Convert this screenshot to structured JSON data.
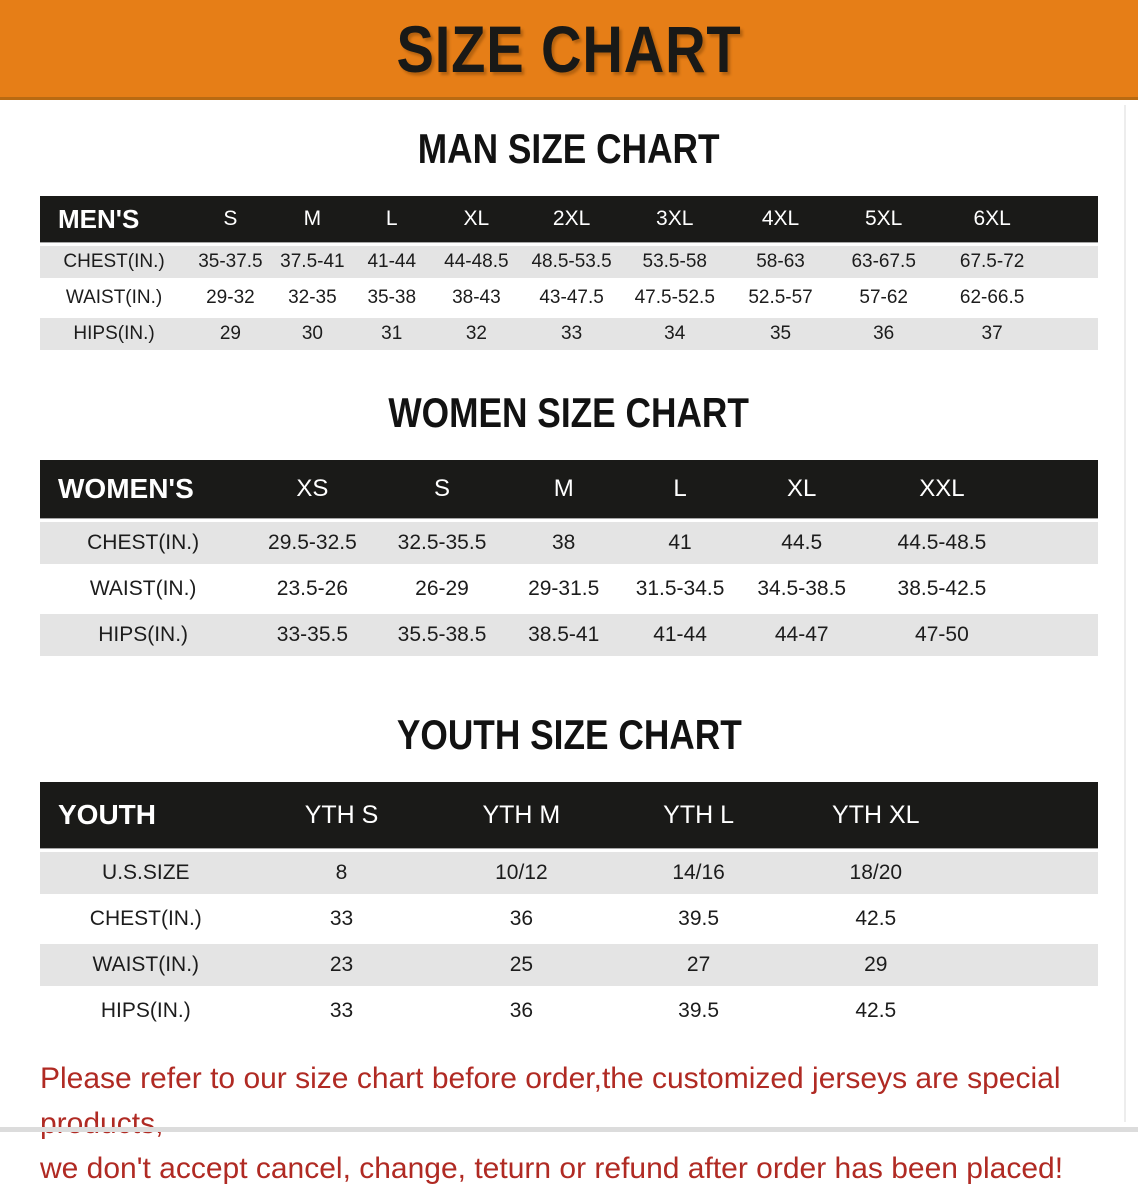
{
  "banner": {
    "title": "SIZE CHART",
    "background": "#E67E17"
  },
  "colors": {
    "header_bar": "#1A1A18",
    "row_shade": "#E4E4E4",
    "disclaimer_text": "#B02A23"
  },
  "sections": [
    {
      "heading": "MAN SIZE CHART",
      "table": {
        "header_label": "MEN'S",
        "columns": [
          "S",
          "M",
          "L",
          "XL",
          "2XL",
          "3XL",
          "4XL",
          "5XL",
          "6XL"
        ],
        "rows": [
          {
            "label": "CHEST(IN.)",
            "values": [
              "35-37.5",
              "37.5-41",
              "41-44",
              "44-48.5",
              "48.5-53.5",
              "53.5-58",
              "58-63",
              "63-67.5",
              "67.5-72"
            ]
          },
          {
            "label": "WAIST(IN.)",
            "values": [
              "29-32",
              "32-35",
              "35-38",
              "38-43",
              "43-47.5",
              "47.5-52.5",
              "52.5-57",
              "57-62",
              "62-66.5"
            ]
          },
          {
            "label": "HIPS(IN.)",
            "values": [
              "29",
              "30",
              "31",
              "32",
              "33",
              "34",
              "35",
              "36",
              "37"
            ]
          }
        ]
      }
    },
    {
      "heading": "WOMEN SIZE CHART",
      "table": {
        "header_label": "WOMEN'S",
        "columns": [
          "XS",
          "S",
          "M",
          "L",
          "XL",
          "XXL"
        ],
        "rows": [
          {
            "label": "CHEST(IN.)",
            "values": [
              "29.5-32.5",
              "32.5-35.5",
              "38",
              "41",
              "44.5",
              "44.5-48.5"
            ]
          },
          {
            "label": "WAIST(IN.)",
            "values": [
              "23.5-26",
              "26-29",
              "29-31.5",
              "31.5-34.5",
              "34.5-38.5",
              "38.5-42.5"
            ]
          },
          {
            "label": "HIPS(IN.)",
            "values": [
              "33-35.5",
              "35.5-38.5",
              "38.5-41",
              "41-44",
              "44-47",
              "47-50"
            ]
          }
        ]
      }
    },
    {
      "heading": "YOUTH SIZE CHART",
      "table": {
        "header_label": "YOUTH",
        "columns": [
          "YTH S",
          "YTH M",
          "YTH L",
          "YTH XL"
        ],
        "rows": [
          {
            "label": "U.S.SIZE",
            "values": [
              "8",
              "10/12",
              "14/16",
              "18/20"
            ]
          },
          {
            "label": "CHEST(IN.)",
            "values": [
              "33",
              "36",
              "39.5",
              "42.5"
            ]
          },
          {
            "label": "WAIST(IN.)",
            "values": [
              "23",
              "25",
              "27",
              "29"
            ]
          },
          {
            "label": "HIPS(IN.)",
            "values": [
              "33",
              "36",
              "39.5",
              "42.5"
            ]
          }
        ]
      }
    }
  ],
  "disclaimer": {
    "line1": "Please refer to our size chart before order,the customized jerseys are special products,",
    "line2": "we don't accept cancel, change, teturn or refund after order has been placed!"
  }
}
